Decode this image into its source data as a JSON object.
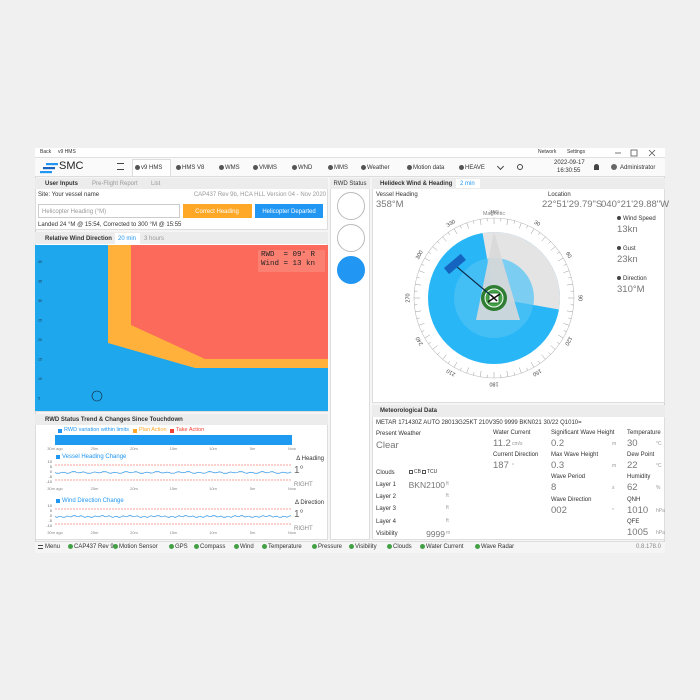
{
  "titlebar": {
    "back": "Back",
    "app": "v9 HMS",
    "network": "Network",
    "settings": "Settings"
  },
  "toolbar": {
    "logo": "SMC",
    "tabs": [
      "v9 HMS",
      "HMS V8",
      "WMS",
      "VMMS",
      "WND",
      "MMS",
      "Weather",
      "Motion data",
      "HEAVE"
    ],
    "date": "2022-09-17",
    "time": "16:30:55",
    "user": "Administrator"
  },
  "user_inputs": {
    "tabs": [
      "User Inputs",
      "Pre-Flight Report",
      "List"
    ],
    "site": "Site: Your vessel name",
    "version": "CAP437 Rev 9b, HCA HLL Version 04 - Nov 2020",
    "heading_placeholder": "Helicopter Heading (°M)",
    "correct_button": "Correct Heading",
    "departed_button": "Helicopter Departed",
    "landed": "Landed 24 °M @ 15:54, Corrected to 300 °M @ 15:55"
  },
  "relative_wind": {
    "title": "Relative Wind Direction",
    "ranges": [
      "20 min",
      "3 hours"
    ],
    "yticks": [
      "40",
      "35",
      "30",
      "25",
      "20",
      "15",
      "10",
      "5"
    ],
    "readout": [
      "RWD  = 09° R",
      "Wind = 13 kn"
    ]
  },
  "rwd_trend": {
    "title": "RWD Status Trend & Changes Since Touchdown",
    "legend": [
      "RWD variation within limits",
      "Plan Action",
      "Take Action"
    ],
    "xticks": [
      "30m ago",
      "25m",
      "20m",
      "15m",
      "10m",
      "5m",
      "Now"
    ],
    "charts": [
      {
        "title": "Vessel Heading Change",
        "delta_label": "Δ Heading",
        "delta": "1°",
        "side": "RIGHT",
        "yticks": [
          "10",
          "5",
          "0",
          "-5",
          "-10"
        ]
      },
      {
        "title": "Wind Direction Change",
        "delta_label": "Δ Direction",
        "delta": "1°",
        "side": "RIGHT",
        "yticks": [
          "10",
          "5",
          "0",
          "-5",
          "-10"
        ]
      }
    ]
  },
  "rwd_status": {
    "title": "RWD Status"
  },
  "helideck": {
    "title": "Helideck Wind & Heading",
    "range": "2 min",
    "vessel_heading_label": "Vessel Heading",
    "vessel_heading": "358°M",
    "location_label": "Location",
    "latitude": "22°51'29.79\"S",
    "longitude": "040°21'29.88\"W",
    "wind_speed_label": "Wind Speed",
    "wind_speed": "13kn",
    "gust_label": "Gust",
    "gust": "23kn",
    "direction_label": "Direction",
    "direction": "310°M",
    "compass": {
      "label": "Magnetic",
      "degrees": [
        "360",
        "30",
        "60",
        "90",
        "120",
        "150",
        "180",
        "210",
        "240",
        "270",
        "300",
        "330"
      ]
    }
  },
  "meteo": {
    "title": "Meteorological Data",
    "metar": "METAR 171430Z AUTO 28013G25KT 210V350 9999 BKN021 30/22 Q1010=",
    "present_weather_label": "Present Weather",
    "present_weather": "Clear",
    "clouds_label": "Clouds",
    "cloud_flags": [
      "CB",
      "TCU"
    ],
    "layers": [
      {
        "label": "Layer 1",
        "value": "BKN2100",
        "unit": "ft"
      },
      {
        "label": "Layer 2",
        "unit": "ft"
      },
      {
        "label": "Layer 3",
        "unit": "ft"
      },
      {
        "label": "Layer 4",
        "unit": "ft"
      },
      {
        "label": "Visibility",
        "value": "9999",
        "unit": "m"
      }
    ],
    "columns": [
      [
        {
          "label": "Water Current",
          "value": "11.2",
          "unit": "cm/s"
        },
        {
          "label": "Current Direction",
          "value": "187",
          "unit": "°"
        }
      ],
      [
        {
          "label": "Significant Wave Height",
          "value": "0.2",
          "unit": "m"
        },
        {
          "label": "Max Wave Height",
          "value": "0.3",
          "unit": "m"
        },
        {
          "label": "Wave Period",
          "value": "8",
          "unit": "s"
        },
        {
          "label": "Wave Direction",
          "value": "002",
          "unit": "°"
        }
      ],
      [
        {
          "label": "Temperature",
          "value": "30",
          "unit": "°C"
        },
        {
          "label": "Dew Point",
          "value": "22",
          "unit": "°C"
        },
        {
          "label": "Humidity",
          "value": "62",
          "unit": "%"
        },
        {
          "label": "QNH",
          "value": "1010",
          "unit": "hPa"
        },
        {
          "label": "QFE",
          "value": "1005",
          "unit": "hPa"
        }
      ]
    ]
  },
  "statusbar": {
    "menu": "Menu",
    "items": [
      "CAP437 Rev 9",
      "Motion Sensor",
      "GPS",
      "Compass",
      "Wind",
      "Temperature",
      "Pressure",
      "Visibility",
      "Clouds",
      "Water Current",
      "Wave Radar"
    ],
    "version": "0.8.178.0"
  }
}
